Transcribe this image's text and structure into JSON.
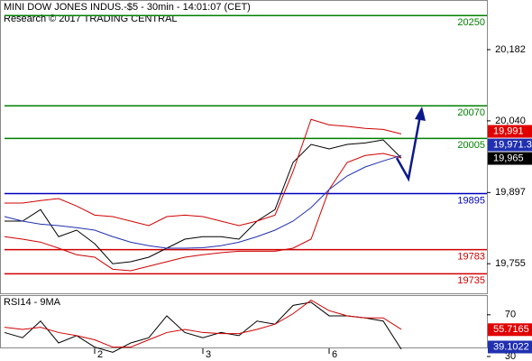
{
  "chart_data": [
    {
      "type": "line",
      "title": "MINI DOW JONES INDUS.-$5 - 30min - 14:01:07 (CET)",
      "subtitle": "Research © 2017 TRADING CENTRAL",
      "categories": [
        null,
        null,
        null,
        null,
        null,
        "2",
        null,
        null,
        null,
        null,
        null,
        "3",
        null,
        null,
        null,
        null,
        null,
        null,
        "6",
        null,
        null,
        null,
        null
      ],
      "ylim": [
        19696,
        20281
      ],
      "yticks": [
        {
          "value": 20182,
          "label": "20,182"
        },
        {
          "value": 20040,
          "label": "20,040"
        },
        {
          "value": 19897,
          "label": "19,897"
        },
        {
          "value": 19755,
          "label": "19,755"
        }
      ],
      "series": [
        {
          "color": "#000000",
          "values": [
            19840,
            19840,
            19863,
            19809,
            19822,
            19795,
            19755,
            19759,
            19768,
            19786,
            19804,
            19809,
            19809,
            19804,
            19840,
            19863,
            19957,
            19993,
            19984,
            19993,
            19996,
            20002,
            19966
          ]
        },
        {
          "color": "#d00000",
          "values": [
            19876,
            19876,
            19881,
            19885,
            19870,
            19852,
            19849,
            19840,
            19831,
            19849,
            19852,
            19849,
            19840,
            19831,
            19840,
            19852,
            19939,
            20043,
            20032,
            20029,
            20025,
            20023,
            20014
          ]
        },
        {
          "color": "#d00000",
          "values": [
            19809,
            19804,
            19798,
            19786,
            19773,
            19768,
            19744,
            19741,
            19750,
            19759,
            19768,
            19773,
            19777,
            19780,
            19780,
            19780,
            19786,
            19804,
            19903,
            19957,
            19971,
            19975,
            19966
          ]
        },
        {
          "color": "#2030b0",
          "values": [
            19849,
            19840,
            19834,
            19831,
            19827,
            19822,
            19809,
            19798,
            19791,
            19786,
            19786,
            19787,
            19791,
            19798,
            19809,
            19822,
            19840,
            19867,
            19903,
            19930,
            19948,
            19960,
            19971
          ]
        }
      ],
      "levels": [
        {
          "value": 20250,
          "color": "#008000"
        },
        {
          "value": 20070,
          "color": "#008000"
        },
        {
          "value": 20005,
          "color": "#008000"
        },
        {
          "value": 19895,
          "color": "#0000c0"
        },
        {
          "value": 19783,
          "color": "#d00000"
        },
        {
          "value": 19735,
          "color": "#d00000"
        }
      ],
      "markers": [
        {
          "value": 19991,
          "label": "19,991",
          "color": "#e00000"
        },
        {
          "value": 19971.3,
          "label": "19,971.3",
          "color": "#2030b0"
        },
        {
          "value": 19965,
          "label": "19,965",
          "color": "#000000"
        }
      ]
    },
    {
      "type": "line",
      "title": "RSI14 - 9MA",
      "ylim": [
        30,
        88
      ],
      "yticks": [
        70,
        30
      ],
      "series": [
        {
          "color": "#000000",
          "values": [
            53,
            48,
            64,
            43,
            50,
            39,
            34,
            43,
            48,
            69,
            53,
            48,
            53,
            50,
            64,
            61,
            79,
            82,
            69,
            69,
            67,
            64,
            37
          ]
        },
        {
          "color": "#d00000",
          "values": [
            58,
            56,
            58,
            53,
            50,
            46,
            39,
            39,
            46,
            53,
            56,
            53,
            52,
            52,
            56,
            61,
            71,
            84,
            74,
            69,
            67,
            67,
            56
          ]
        }
      ],
      "markers": [
        {
          "value": 55.7165,
          "label": "55.7165",
          "color": "#e00000"
        },
        {
          "value": 39.1022,
          "label": "39.1022",
          "color": "#2030b0"
        }
      ]
    }
  ]
}
